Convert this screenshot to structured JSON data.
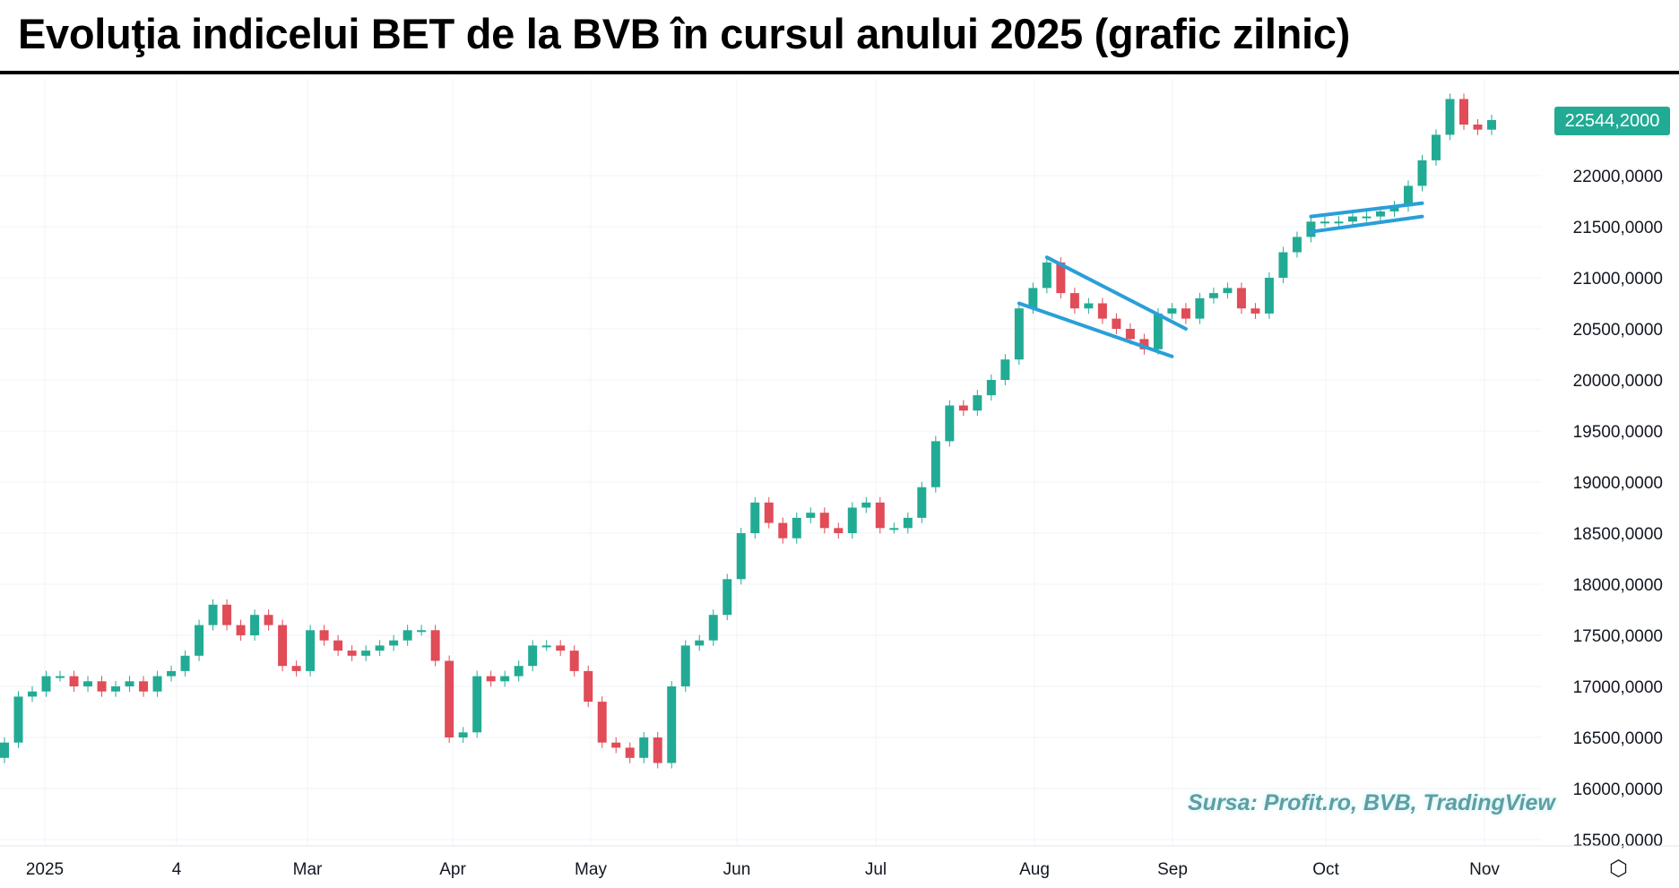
{
  "title": "Evoluţia indicelui BET de la BVB în cursul anului 2025 (grafic zilnic)",
  "watermark": "Sursa: Profit.ro, BVB, TradingView",
  "last_price_label": "22544,2000",
  "settings_icon": "hexagon-settings-icon",
  "colors": {
    "up": "#22ab94",
    "down": "#e04c57",
    "trendline": "#2a9fd8",
    "grid": "#f0f3fa"
  },
  "chart_data": {
    "type": "candlestick",
    "title": "Evoluţia indicelui BET de la BVB în cursul anului 2025 (grafic zilnic)",
    "ylim": [
      15500,
      22800
    ],
    "y_ticks": [
      "15500,0000",
      "16000,0000",
      "16500,0000",
      "17000,0000",
      "17500,0000",
      "18000,0000",
      "18500,0000",
      "19000,0000",
      "19500,0000",
      "20000,0000",
      "20500,0000",
      "21000,0000",
      "21500,0000",
      "22000,0000"
    ],
    "y_tick_values": [
      15500,
      16000,
      16500,
      17000,
      17500,
      18000,
      18500,
      19000,
      19500,
      20000,
      20500,
      21000,
      21500,
      22000
    ],
    "x_ticks": [
      "2025",
      "4",
      "Mar",
      "Apr",
      "May",
      "Jun",
      "Jul",
      "Aug",
      "Sep",
      "Oct",
      "Nov"
    ],
    "grid": true,
    "last_price": 22544.2,
    "closes": [
      16450,
      16900,
      16950,
      17100,
      17100,
      17000,
      17050,
      16950,
      17000,
      17050,
      16950,
      17100,
      17150,
      17300,
      17600,
      17800,
      17600,
      17500,
      17700,
      17600,
      17200,
      17150,
      17550,
      17450,
      17350,
      17300,
      17350,
      17400,
      17450,
      17550,
      17550,
      17250,
      16500,
      16550,
      17100,
      17050,
      17100,
      17200,
      17400,
      17400,
      17350,
      17150,
      16850,
      16450,
      16400,
      16300,
      16500,
      16250,
      17000,
      17400,
      17450,
      17700,
      18050,
      18500,
      18800,
      18600,
      18450,
      18650,
      18700,
      18550,
      18500,
      18750,
      18800,
      18550,
      18550,
      18650,
      18950,
      19400,
      19750,
      19700,
      19850,
      20000,
      20200,
      20700,
      20900,
      21150,
      20850,
      20700,
      20750,
      20600,
      20500,
      20400,
      20300,
      20650,
      20700,
      20600,
      20800,
      20850,
      20900,
      20700,
      20650,
      21000,
      21250,
      21400,
      21550,
      21550,
      21550,
      21600,
      21600,
      21650,
      21700,
      21900,
      22150,
      22400,
      22750,
      22500,
      22450,
      22544.2
    ],
    "trendlines": [
      {
        "from": [
          75,
          21200
        ],
        "to": [
          85,
          20500
        ]
      },
      {
        "from": [
          73,
          20750
        ],
        "to": [
          84,
          20230
        ]
      },
      {
        "from": [
          94,
          21600
        ],
        "to": [
          102,
          21730
        ]
      },
      {
        "from": [
          94,
          21450
        ],
        "to": [
          102,
          21600
        ]
      }
    ]
  }
}
